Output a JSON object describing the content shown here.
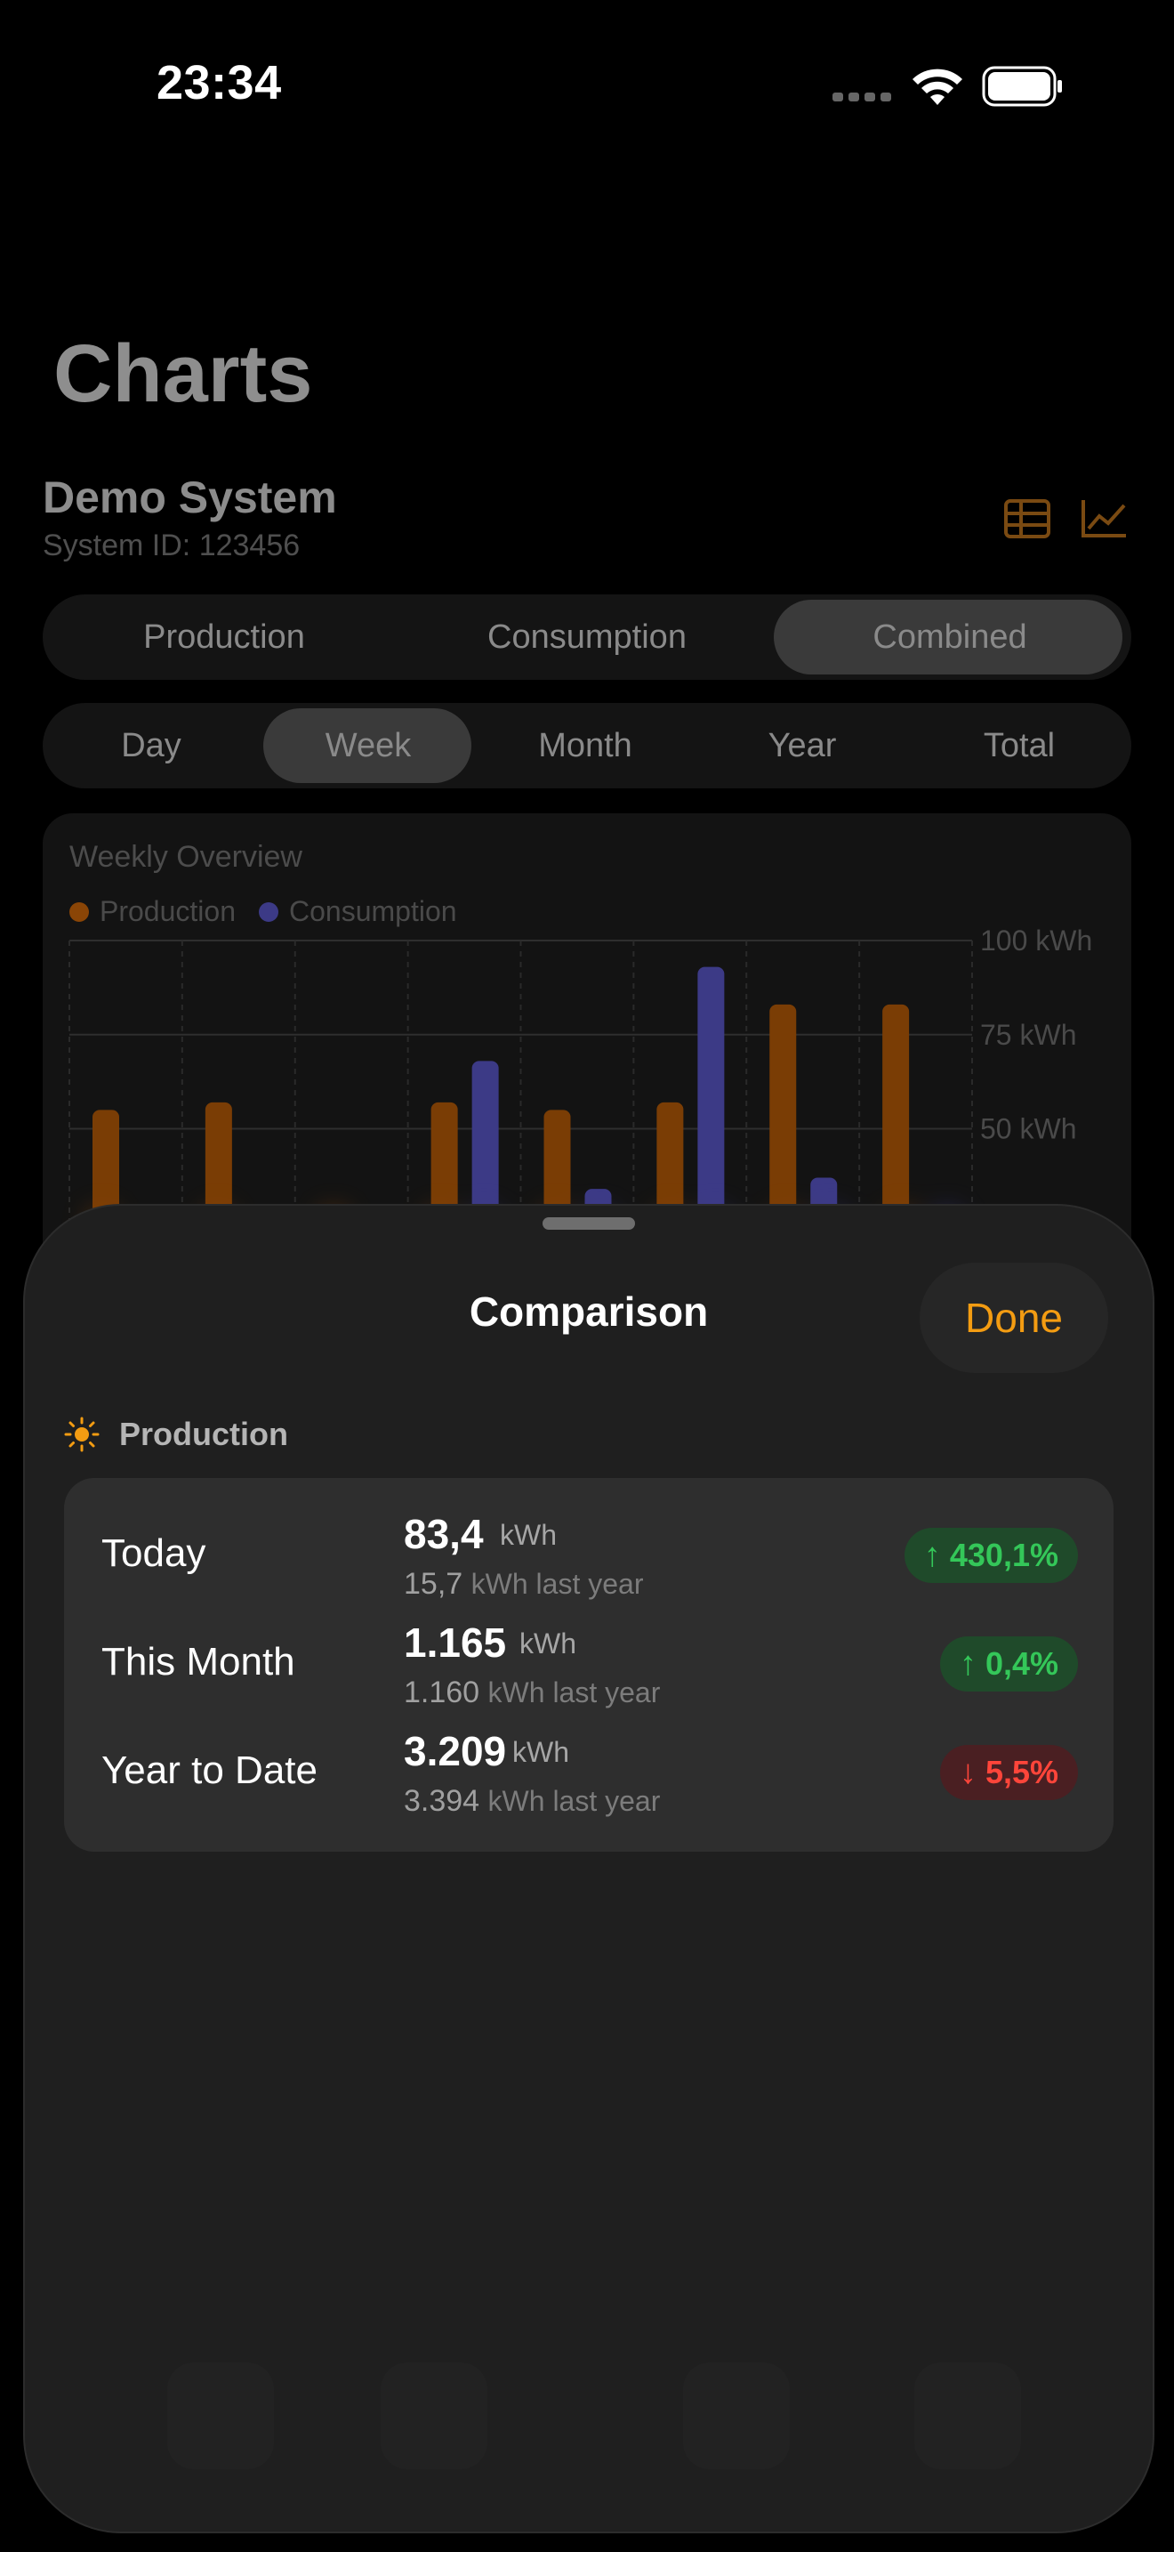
{
  "status_bar": {
    "time": "23:34"
  },
  "page": {
    "title": "Charts",
    "system_name": "Demo System",
    "system_id": "System ID: 123456",
    "mode_tabs": [
      "Production",
      "Consumption",
      "Combined"
    ],
    "period_tabs": [
      "Day",
      "Week",
      "Month",
      "Year",
      "Total"
    ],
    "selected_mode": "Combined",
    "selected_period": "Week"
  },
  "chart_data": {
    "type": "bar",
    "title": "Weekly Overview",
    "series": [
      {
        "name": "Production",
        "color": "#b35a00",
        "values": [
          55,
          57,
          0,
          57,
          55,
          57,
          83,
          83
        ]
      },
      {
        "name": "Consumption",
        "color": "#4b47a8",
        "values": [
          0,
          0,
          0,
          68,
          34,
          93,
          37,
          0
        ]
      }
    ],
    "y_ticks": [
      "100 kWh",
      "75 kWh",
      "50 kWh"
    ],
    "ylim": [
      0,
      100
    ]
  },
  "sheet": {
    "title": "Comparison",
    "done_label": "Done",
    "section_label": "Production",
    "rows": [
      {
        "label": "Today",
        "value": "83,4",
        "unit": "kWh",
        "last_value": "15,7",
        "last_unit": "kWh last year",
        "change": "430,1%",
        "direction": "up"
      },
      {
        "label": "This Month",
        "value": "1.165",
        "unit": "kWh",
        "last_value": "1.160",
        "last_unit": "kWh last year",
        "change": "0,4%",
        "direction": "up"
      },
      {
        "label": "Year to Date",
        "value": "3.209",
        "unit": "kWh",
        "last_value": "3.394",
        "last_unit": "kWh last year",
        "change": "5,5%",
        "direction": "down"
      }
    ]
  },
  "colors": {
    "accent": "#f39c12",
    "positive": "#34c759",
    "negative": "#ff453a"
  }
}
